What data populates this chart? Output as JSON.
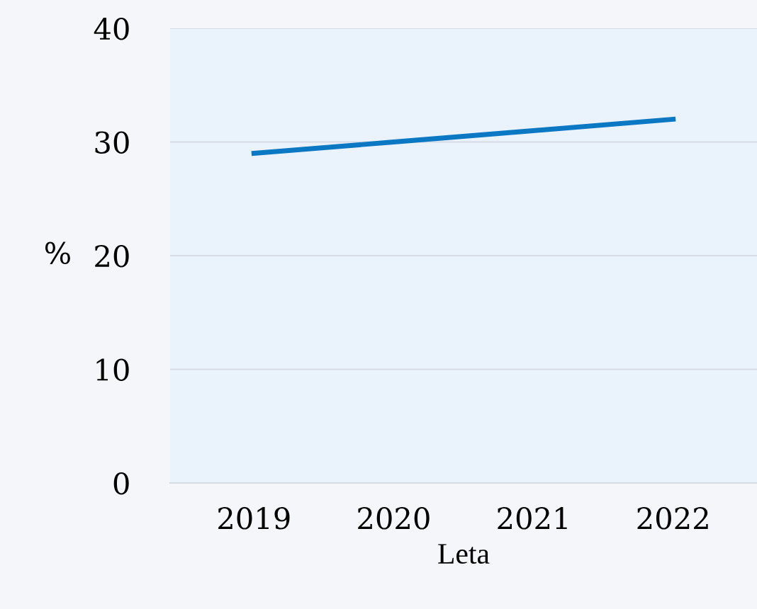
{
  "chart_data": {
    "type": "line",
    "xlabel": "Leta",
    "ylabel": "%",
    "categories": [
      "2019",
      "2020",
      "2021",
      "2022"
    ],
    "series": [
      {
        "color": "#0a78c2",
        "values": [
          29,
          30,
          31,
          32
        ]
      }
    ],
    "ylim": [
      0,
      40
    ],
    "yticks": [
      0,
      10,
      20,
      30,
      40
    ],
    "grid": "y",
    "legend": false,
    "marker": "none",
    "line_style": "solid"
  }
}
